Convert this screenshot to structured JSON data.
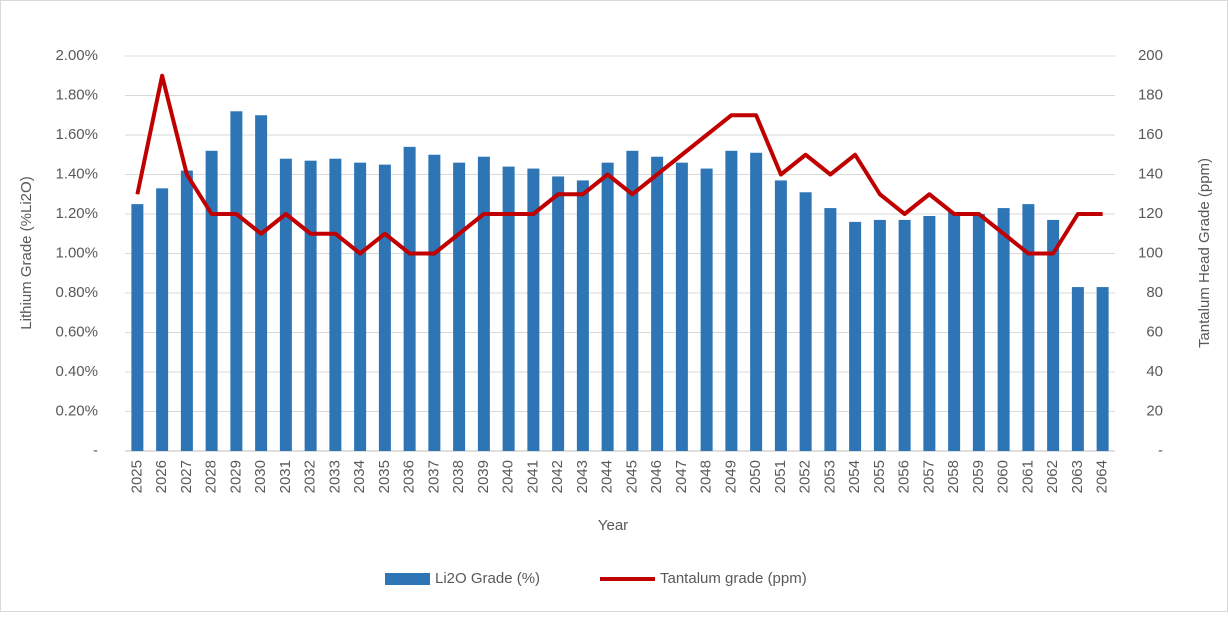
{
  "chart_data": {
    "type": "bar_line",
    "x_label": "Year",
    "y_label": "Lithium Grade (%Li2O)",
    "y2_label": "Tantalum Head Grade (ppm)",
    "categories": [
      "2025",
      "2026",
      "2027",
      "2028",
      "2029",
      "2030",
      "2031",
      "2032",
      "2033",
      "2034",
      "2035",
      "2036",
      "2037",
      "2038",
      "2039",
      "2040",
      "2041",
      "2042",
      "2043",
      "2044",
      "2045",
      "2046",
      "2047",
      "2048",
      "2049",
      "2050",
      "2051",
      "2052",
      "2053",
      "2054",
      "2055",
      "2056",
      "2057",
      "2058",
      "2059",
      "2060",
      "2061",
      "2062",
      "2063",
      "2064"
    ],
    "series": [
      {
        "name": "Li2O Grade (%)",
        "type": "bar",
        "color": "#2e75b6",
        "values": [
          1.25,
          1.33,
          1.42,
          1.52,
          1.72,
          1.7,
          1.48,
          1.47,
          1.48,
          1.46,
          1.45,
          1.54,
          1.5,
          1.46,
          1.49,
          1.44,
          1.43,
          1.39,
          1.37,
          1.46,
          1.52,
          1.49,
          1.46,
          1.43,
          1.52,
          1.51,
          1.37,
          1.31,
          1.23,
          1.16,
          1.17,
          1.17,
          1.19,
          1.21,
          1.2,
          1.23,
          1.25,
          1.17,
          0.83,
          0.83
        ]
      },
      {
        "name": "Tantalum grade (ppm)",
        "type": "line",
        "axis": "y2",
        "color": "#c00000",
        "values": [
          130,
          190,
          140,
          120,
          120,
          110,
          120,
          110,
          110,
          100,
          110,
          100,
          100,
          110,
          120,
          120,
          120,
          130,
          130,
          140,
          130,
          140,
          150,
          160,
          170,
          170,
          140,
          150,
          140,
          150,
          130,
          120,
          130,
          120,
          120,
          110,
          100,
          100,
          120,
          120
        ]
      }
    ],
    "ylim": [
      0,
      2
    ],
    "yticks": [
      {
        "value": 0,
        "label": "-"
      },
      {
        "value": 0.2,
        "label": "0.20%"
      },
      {
        "value": 0.4,
        "label": "0.40%"
      },
      {
        "value": 0.6,
        "label": "0.60%"
      },
      {
        "value": 0.8,
        "label": "0.80%"
      },
      {
        "value": 1.0,
        "label": "1.00%"
      },
      {
        "value": 1.2,
        "label": "1.20%"
      },
      {
        "value": 1.4,
        "label": "1.40%"
      },
      {
        "value": 1.6,
        "label": "1.60%"
      },
      {
        "value": 1.8,
        "label": "1.80%"
      },
      {
        "value": 2.0,
        "label": "2.00%"
      }
    ],
    "y2lim": [
      0,
      200
    ],
    "y2ticks": [
      {
        "value": 0,
        "label": "-"
      },
      20,
      40,
      60,
      80,
      100,
      120,
      140,
      160,
      180,
      200
    ],
    "grid": true,
    "legend": "bottom"
  }
}
